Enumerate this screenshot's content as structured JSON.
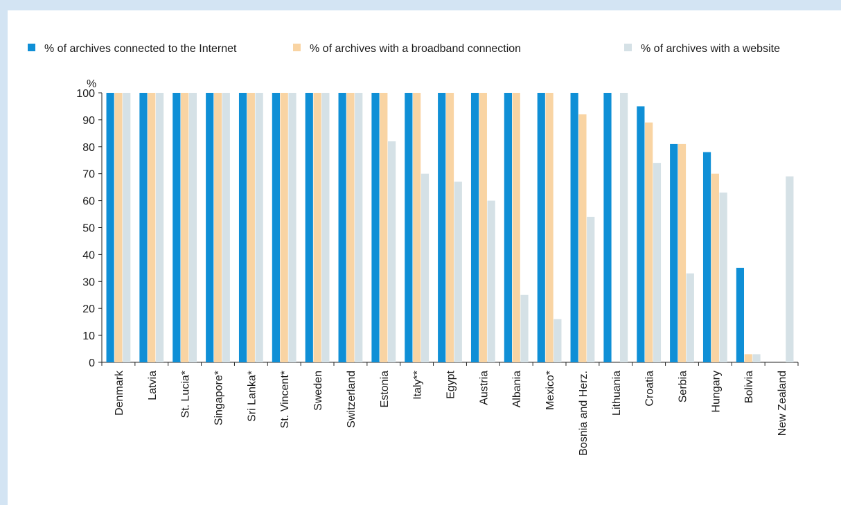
{
  "chart_data": {
    "type": "bar",
    "title": "",
    "ylabel": "%",
    "xlabel": "",
    "ylim": [
      0,
      100
    ],
    "yticks": [
      0,
      10,
      20,
      30,
      40,
      50,
      60,
      70,
      80,
      90,
      100
    ],
    "legend_position": "top",
    "categories": [
      "Denmark",
      "Latvia",
      "St. Lucia*",
      "Singapore*",
      "Sri Lanka*",
      "St. Vincent*",
      "Sweden",
      "Switzerland",
      "Estonia",
      "Italy**",
      "Egypt",
      "Austria",
      "Albania",
      "Mexico*",
      "Bosnia and Herz.",
      "Lithuania",
      "Croatia",
      "Serbia",
      "Hungary",
      "Bolivia",
      "New Zealand"
    ],
    "series": [
      {
        "name": "% of archives connected to the Internet",
        "color": "#0f8fd6",
        "values": [
          100,
          100,
          100,
          100,
          100,
          100,
          100,
          100,
          100,
          100,
          100,
          100,
          100,
          100,
          100,
          100,
          95,
          81,
          78,
          35,
          null
        ]
      },
      {
        "name": "% of archives with a broadband connection",
        "color": "#f9d4a3",
        "values": [
          100,
          100,
          100,
          100,
          100,
          100,
          100,
          100,
          100,
          100,
          100,
          100,
          100,
          100,
          92,
          null,
          89,
          81,
          70,
          3,
          null
        ]
      },
      {
        "name": "% of archives with a website",
        "color": "#d5e1e6",
        "values": [
          100,
          100,
          100,
          100,
          100,
          100,
          100,
          100,
          82,
          70,
          67,
          60,
          25,
          16,
          54,
          100,
          74,
          33,
          63,
          3,
          69
        ]
      }
    ]
  }
}
